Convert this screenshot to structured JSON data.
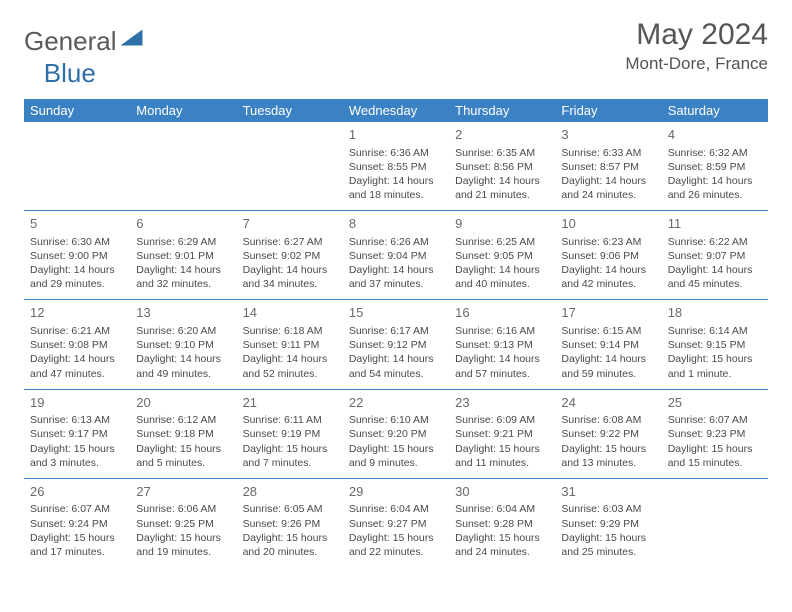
{
  "brand": {
    "part1": "General",
    "part2": "Blue"
  },
  "title": "May 2024",
  "location": "Mont-Dore, France",
  "colors": {
    "header_bg": "#3b82c4",
    "header_text": "#ffffff",
    "border": "#3b82c4",
    "daynum": "#6a6a6a",
    "body_text": "#4a4a4a",
    "logo_gray": "#5a5a5a",
    "logo_blue": "#2f6fa8",
    "background": "#ffffff"
  },
  "typography": {
    "month_title_pt": 30,
    "location_pt": 17,
    "header_cell_pt": 13,
    "daynum_pt": 13,
    "body_pt": 10.5
  },
  "layout": {
    "columns": 7,
    "rows": 5,
    "start_day_index": 3
  },
  "weekdays": [
    "Sunday",
    "Monday",
    "Tuesday",
    "Wednesday",
    "Thursday",
    "Friday",
    "Saturday"
  ],
  "days": [
    {
      "n": 1,
      "sunrise": "6:36 AM",
      "sunset": "8:55 PM",
      "daylight": "14 hours and 18 minutes."
    },
    {
      "n": 2,
      "sunrise": "6:35 AM",
      "sunset": "8:56 PM",
      "daylight": "14 hours and 21 minutes."
    },
    {
      "n": 3,
      "sunrise": "6:33 AM",
      "sunset": "8:57 PM",
      "daylight": "14 hours and 24 minutes."
    },
    {
      "n": 4,
      "sunrise": "6:32 AM",
      "sunset": "8:59 PM",
      "daylight": "14 hours and 26 minutes."
    },
    {
      "n": 5,
      "sunrise": "6:30 AM",
      "sunset": "9:00 PM",
      "daylight": "14 hours and 29 minutes."
    },
    {
      "n": 6,
      "sunrise": "6:29 AM",
      "sunset": "9:01 PM",
      "daylight": "14 hours and 32 minutes."
    },
    {
      "n": 7,
      "sunrise": "6:27 AM",
      "sunset": "9:02 PM",
      "daylight": "14 hours and 34 minutes."
    },
    {
      "n": 8,
      "sunrise": "6:26 AM",
      "sunset": "9:04 PM",
      "daylight": "14 hours and 37 minutes."
    },
    {
      "n": 9,
      "sunrise": "6:25 AM",
      "sunset": "9:05 PM",
      "daylight": "14 hours and 40 minutes."
    },
    {
      "n": 10,
      "sunrise": "6:23 AM",
      "sunset": "9:06 PM",
      "daylight": "14 hours and 42 minutes."
    },
    {
      "n": 11,
      "sunrise": "6:22 AM",
      "sunset": "9:07 PM",
      "daylight": "14 hours and 45 minutes."
    },
    {
      "n": 12,
      "sunrise": "6:21 AM",
      "sunset": "9:08 PM",
      "daylight": "14 hours and 47 minutes."
    },
    {
      "n": 13,
      "sunrise": "6:20 AM",
      "sunset": "9:10 PM",
      "daylight": "14 hours and 49 minutes."
    },
    {
      "n": 14,
      "sunrise": "6:18 AM",
      "sunset": "9:11 PM",
      "daylight": "14 hours and 52 minutes."
    },
    {
      "n": 15,
      "sunrise": "6:17 AM",
      "sunset": "9:12 PM",
      "daylight": "14 hours and 54 minutes."
    },
    {
      "n": 16,
      "sunrise": "6:16 AM",
      "sunset": "9:13 PM",
      "daylight": "14 hours and 57 minutes."
    },
    {
      "n": 17,
      "sunrise": "6:15 AM",
      "sunset": "9:14 PM",
      "daylight": "14 hours and 59 minutes."
    },
    {
      "n": 18,
      "sunrise": "6:14 AM",
      "sunset": "9:15 PM",
      "daylight": "15 hours and 1 minute."
    },
    {
      "n": 19,
      "sunrise": "6:13 AM",
      "sunset": "9:17 PM",
      "daylight": "15 hours and 3 minutes."
    },
    {
      "n": 20,
      "sunrise": "6:12 AM",
      "sunset": "9:18 PM",
      "daylight": "15 hours and 5 minutes."
    },
    {
      "n": 21,
      "sunrise": "6:11 AM",
      "sunset": "9:19 PM",
      "daylight": "15 hours and 7 minutes."
    },
    {
      "n": 22,
      "sunrise": "6:10 AM",
      "sunset": "9:20 PM",
      "daylight": "15 hours and 9 minutes."
    },
    {
      "n": 23,
      "sunrise": "6:09 AM",
      "sunset": "9:21 PM",
      "daylight": "15 hours and 11 minutes."
    },
    {
      "n": 24,
      "sunrise": "6:08 AM",
      "sunset": "9:22 PM",
      "daylight": "15 hours and 13 minutes."
    },
    {
      "n": 25,
      "sunrise": "6:07 AM",
      "sunset": "9:23 PM",
      "daylight": "15 hours and 15 minutes."
    },
    {
      "n": 26,
      "sunrise": "6:07 AM",
      "sunset": "9:24 PM",
      "daylight": "15 hours and 17 minutes."
    },
    {
      "n": 27,
      "sunrise": "6:06 AM",
      "sunset": "9:25 PM",
      "daylight": "15 hours and 19 minutes."
    },
    {
      "n": 28,
      "sunrise": "6:05 AM",
      "sunset": "9:26 PM",
      "daylight": "15 hours and 20 minutes."
    },
    {
      "n": 29,
      "sunrise": "6:04 AM",
      "sunset": "9:27 PM",
      "daylight": "15 hours and 22 minutes."
    },
    {
      "n": 30,
      "sunrise": "6:04 AM",
      "sunset": "9:28 PM",
      "daylight": "15 hours and 24 minutes."
    },
    {
      "n": 31,
      "sunrise": "6:03 AM",
      "sunset": "9:29 PM",
      "daylight": "15 hours and 25 minutes."
    }
  ],
  "labels": {
    "sunrise": "Sunrise:",
    "sunset": "Sunset:",
    "daylight": "Daylight:"
  }
}
